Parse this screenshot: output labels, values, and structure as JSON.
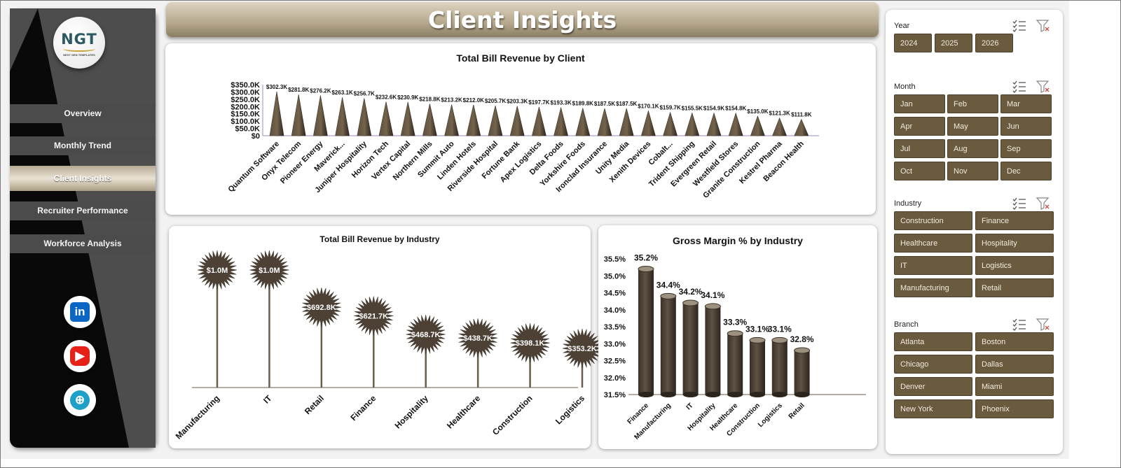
{
  "title": "Client Insights",
  "sidebar": {
    "logo_text": "NGT",
    "logo_subtext": "NEXT GEN TEMPLATES",
    "nav": [
      {
        "label": "Overview",
        "active": false
      },
      {
        "label": "Monthly Trend",
        "active": false
      },
      {
        "label": "Client Insights",
        "active": true
      },
      {
        "label": "Recruiter Performance",
        "active": false
      },
      {
        "label": "Workforce Analysis",
        "active": false
      }
    ],
    "social": [
      {
        "icon": "linkedin-icon",
        "glyph": "in",
        "color": "#0a66c2"
      },
      {
        "icon": "youtube-icon",
        "glyph": "▶",
        "color": "#e62117"
      },
      {
        "icon": "globe-icon",
        "glyph": "⊕",
        "color": "#1fa0c8"
      }
    ]
  },
  "chart_data": [
    {
      "type": "bar",
      "title": "Total Bill Revenue  by Client",
      "categories": [
        "Quantum Software",
        "Onyx Telecom",
        "Pioneer Energy",
        "Maverick...",
        "Juniper Hospitality",
        "Horizon Tech",
        "Vertex Capital",
        "Northern Mills",
        "Summit Auto",
        "Linden Hotels",
        "Riverside Hospital",
        "Fortune Bank",
        "Apex Logistics",
        "Delta Foods",
        "Yorkshire Foods",
        "Ironclad Insurance",
        "Unity Media",
        "Xenith Devices",
        "Cobalt...",
        "Trident Shipping",
        "Evergreen Retail",
        "Westfield Stores",
        "Granite Construction",
        "Kestrel Pharma",
        "Beacon Health"
      ],
      "values": [
        302.3,
        281.8,
        276.2,
        263.1,
        256.7,
        232.6,
        230.9,
        218.8,
        213.2,
        212.0,
        205.7,
        203.3,
        197.7,
        193.3,
        189.8,
        187.5,
        187.5,
        170.1,
        159.7,
        155.5,
        154.9,
        154.8,
        135.0,
        121.3,
        111.8
      ],
      "labels": [
        "$302.3K",
        "$281.8K",
        "$276.2K",
        "$263.1K",
        "$256.7K",
        "$232.6K",
        "$230.9K",
        "$218.8K",
        "$213.2K",
        "$212.0K",
        "$205.7K",
        "$203.3K",
        "$197.7K",
        "$193.3K",
        "$189.8K",
        "$187.5K",
        "$187.5K",
        "$170.1K",
        "$159.7K",
        "$155.5K",
        "$154.9K",
        "$154.8K",
        "$135.0K",
        "$121.3K",
        "$111.8K"
      ],
      "yticks": [
        "$0",
        "$50.0K",
        "$100.0K",
        "$150.0K",
        "$200.0K",
        "$250.0K",
        "$300.0K",
        "$350.0K"
      ],
      "ylim": [
        0,
        350
      ]
    },
    {
      "type": "bar",
      "title": "Total Bill Revenue by Industry",
      "categories": [
        "Manufacturing",
        "IT",
        "Retail",
        "Finance",
        "Hospitality",
        "Healthcare",
        "Construction",
        "Logistics"
      ],
      "values": [
        1000,
        1000,
        692.8,
        621.7,
        468.7,
        438.7,
        398.1,
        353.2
      ],
      "labels": [
        "$1.0M",
        "$1.0M",
        "$692.8K",
        "$621.7K",
        "$468.7K",
        "$438.7K",
        "$398.1K",
        "$353.2K"
      ]
    },
    {
      "type": "bar",
      "title": "Gross Margin % by Industry",
      "categories": [
        "Finance",
        "Manufacturing",
        "IT",
        "Hospitality",
        "Healthcare",
        "Construction",
        "Logistics",
        "Retail"
      ],
      "values": [
        35.2,
        34.4,
        34.2,
        34.1,
        33.3,
        33.1,
        33.1,
        32.8
      ],
      "labels": [
        "35.2%",
        "34.4%",
        "34.2%",
        "34.1%",
        "33.3%",
        "33.1%",
        "33.1%",
        "32.8%"
      ],
      "yticks": [
        "31.5%",
        "32.0%",
        "32.5%",
        "33.0%",
        "33.5%",
        "34.0%",
        "34.5%",
        "35.0%",
        "35.5%"
      ],
      "ylim": [
        31.5,
        35.5
      ]
    }
  ],
  "slicers": [
    {
      "name": "year",
      "label": "Year",
      "items": [
        "2024",
        "2025",
        "2026"
      ]
    },
    {
      "name": "month",
      "label": "Month",
      "items": [
        "Jan",
        "Feb",
        "Mar",
        "Apr",
        "May",
        "Jun",
        "Jul",
        "Aug",
        "Sep",
        "Oct",
        "Nov",
        "Dec"
      ]
    },
    {
      "name": "industry",
      "label": "Industry",
      "items": [
        "Construction",
        "Finance",
        "Healthcare",
        "Hospitality",
        "IT",
        "Logistics",
        "Manufacturing",
        "Retail"
      ]
    },
    {
      "name": "branch",
      "label": "Branch",
      "items": [
        "Atlanta",
        "Boston",
        "Chicago",
        "Dallas",
        "Denver",
        "Miami",
        "New York",
        "Phoenix"
      ]
    }
  ],
  "colors": {
    "accent": "#6b5b3e",
    "bar": "#54473a",
    "banner": "#b5a88c"
  }
}
